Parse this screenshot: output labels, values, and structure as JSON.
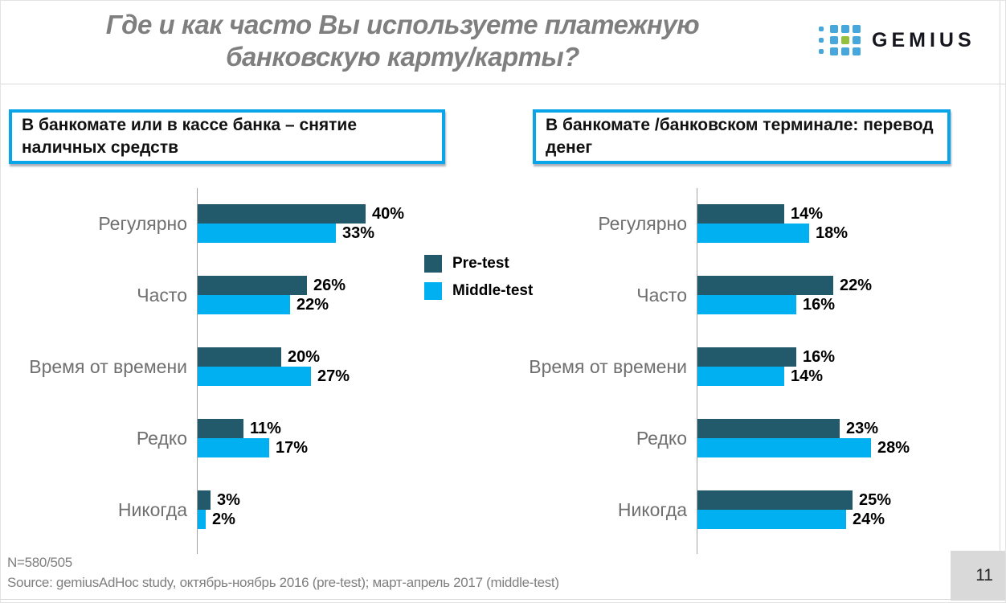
{
  "page": {
    "title_line1": "Где и как часто Вы используете платежную",
    "title_line2": "банковскую карту/карты?",
    "page_number": "11"
  },
  "logo": {
    "text": "GEMIUS",
    "dot_blue": "#45a7db",
    "dot_green": "#94c13d"
  },
  "colors": {
    "pretest": "#235a6b",
    "middletest": "#00b0f0",
    "box_border": "#0aa5e9",
    "axis": "#a3a3a3",
    "category_text": "#6f6f6f",
    "title_text": "#7f7f7f",
    "footer_text": "#7f7f7f",
    "page_box_bg": "#d9d9d9"
  },
  "legend": {
    "items": [
      {
        "label": "Pre-test",
        "color": "#235a6b"
      },
      {
        "label": "Middle-test",
        "color": "#00b0f0"
      }
    ]
  },
  "footer": {
    "n": "N=580/505",
    "source": "Source: gemiusAdHoc study, октябрь-ноябрь 2016 (pre-test); март-апрель 2017 (middle-test)"
  },
  "chart_data": [
    {
      "type": "bar",
      "orientation": "horizontal",
      "title": "В банкомате или в кассе банка – снятие наличных средств",
      "categories": [
        "Регулярно",
        "Часто",
        "Время от времени",
        "Редко",
        "Никогда"
      ],
      "series": [
        {
          "name": "Pre-test",
          "values": [
            40,
            26,
            20,
            11,
            3
          ]
        },
        {
          "name": "Middle-test",
          "values": [
            33,
            22,
            27,
            17,
            2
          ]
        }
      ],
      "unit": "%",
      "xlim": [
        0,
        45
      ],
      "grid": false,
      "data_labels": true
    },
    {
      "type": "bar",
      "orientation": "horizontal",
      "title": "В банкомате /банковском терминале: перевод денег",
      "categories": [
        "Регулярно",
        "Часто",
        "Время от времени",
        "Редко",
        "Никогда"
      ],
      "series": [
        {
          "name": "Pre-test",
          "values": [
            14,
            22,
            16,
            23,
            25
          ]
        },
        {
          "name": "Middle-test",
          "values": [
            18,
            16,
            14,
            28,
            24
          ]
        }
      ],
      "unit": "%",
      "xlim": [
        0,
        30
      ],
      "grid": false,
      "data_labels": true
    }
  ]
}
